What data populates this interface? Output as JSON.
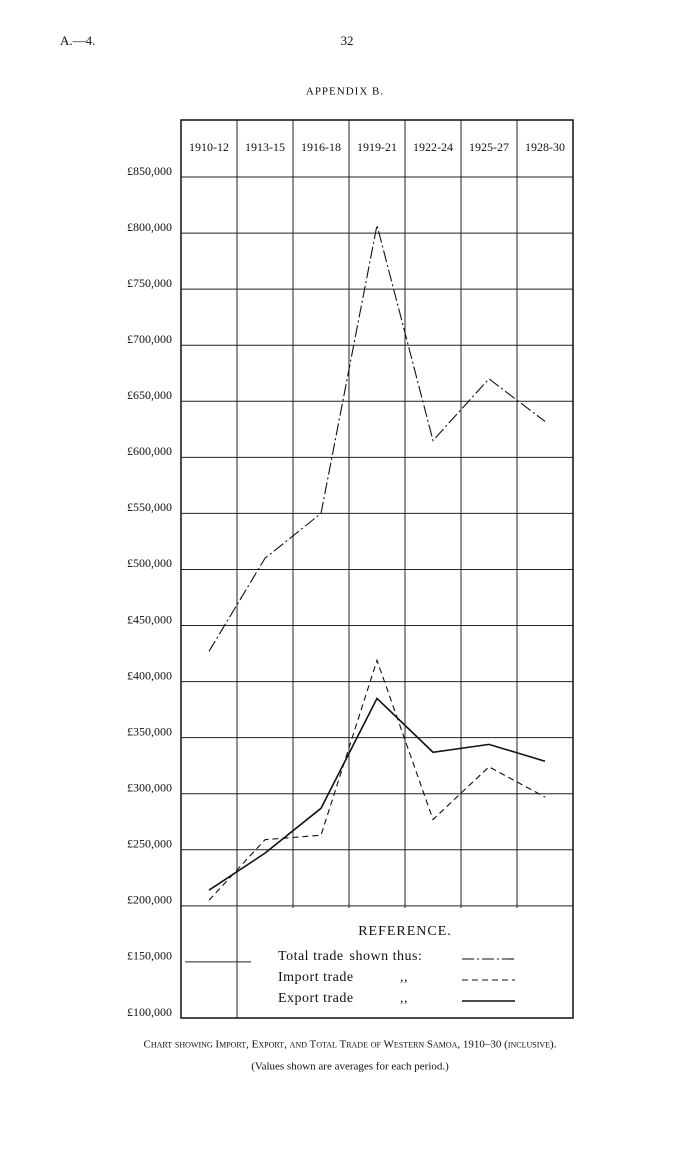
{
  "header": {
    "left": "A.—4.",
    "page": "32",
    "title": "APPENDIX B."
  },
  "chart_data": {
    "type": "line",
    "categories": [
      "1910-12",
      "1913-15",
      "1916-18",
      "1919-21",
      "1922-24",
      "1925-27",
      "1928-30"
    ],
    "series": [
      {
        "name": "Total trade",
        "color": "#111111",
        "dash": "dash-dot",
        "values": [
          427000,
          510000,
          550000,
          807000,
          615000,
          670000,
          632000
        ]
      },
      {
        "name": "Import trade",
        "color": "#111111",
        "dash": "dashed",
        "values": [
          205000,
          259000,
          263000,
          419000,
          277000,
          324000,
          297000
        ]
      },
      {
        "name": "Export trade",
        "color": "#111111",
        "dash": "solid",
        "values": [
          214000,
          247000,
          287000,
          385000,
          337000,
          344000,
          329000
        ]
      }
    ],
    "legend_title": "REFERENCE.",
    "legend_suffixes": [
      "shown thus:",
      ",,",
      ",,"
    ],
    "ylim": [
      100000,
      850000
    ],
    "yticks": [
      {
        "value": 100000,
        "label": "£100,000"
      },
      {
        "value": 150000,
        "label": "£150,000"
      },
      {
        "value": 200000,
        "label": "£200,000"
      },
      {
        "value": 250000,
        "label": "£250,000"
      },
      {
        "value": 300000,
        "label": "£300,000"
      },
      {
        "value": 350000,
        "label": "£350,000"
      },
      {
        "value": 400000,
        "label": "£400,000"
      },
      {
        "value": 450000,
        "label": "£450,000"
      },
      {
        "value": 500000,
        "label": "£500,000"
      },
      {
        "value": 550000,
        "label": "£550,000"
      },
      {
        "value": 600000,
        "label": "£600,000"
      },
      {
        "value": 650000,
        "label": "£650,000"
      },
      {
        "value": 700000,
        "label": "£700,000"
      },
      {
        "value": 750000,
        "label": "£750,000"
      },
      {
        "value": 800000,
        "label": "£800,000"
      },
      {
        "value": 850000,
        "label": "£850,000"
      }
    ],
    "grid": true,
    "caption": "Chart showing Import, Export, and Total Trade of Western Samoa, 1910–30 (inclusive).",
    "note": "(Values shown are averages for each period.)"
  }
}
